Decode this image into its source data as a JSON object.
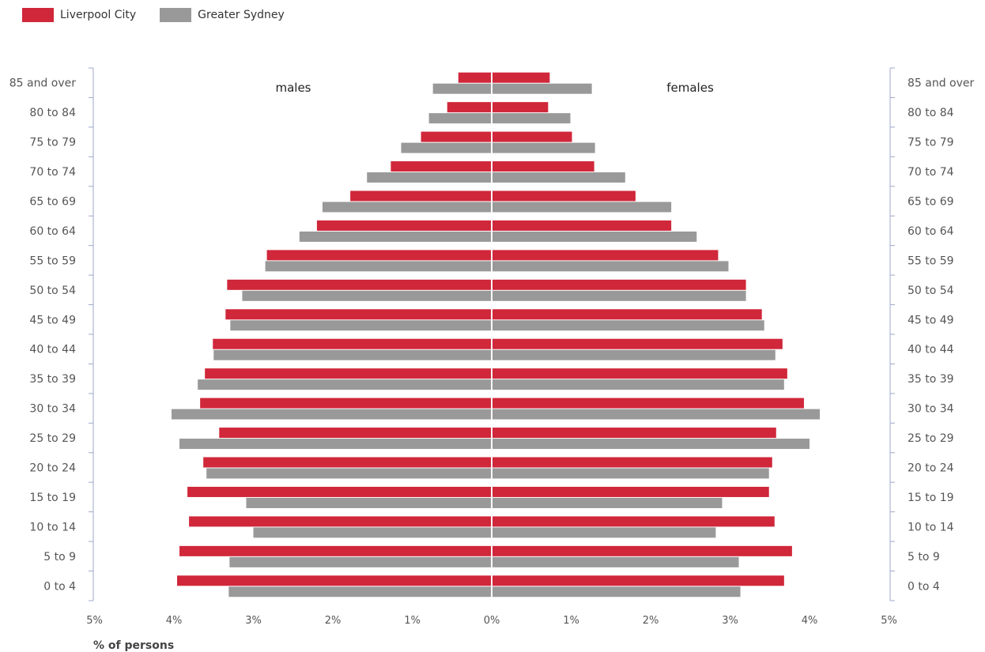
{
  "colors": {
    "series1": "#d0273a",
    "series2": "#999999",
    "axis": "#9fa8c8",
    "text": "#555555"
  },
  "legend": {
    "items": [
      "Liverpool City",
      "Greater Sydney"
    ]
  },
  "chart_data": {
    "type": "bar",
    "orientation": "horizontal-pyramid",
    "categories": [
      "0 to 4",
      "5 to 9",
      "10 to 14",
      "15 to 19",
      "20 to 24",
      "25 to 29",
      "30 to 34",
      "35 to 39",
      "40 to 44",
      "45 to 49",
      "50 to 54",
      "55 to 59",
      "60 to 64",
      "65 to 69",
      "70 to 74",
      "75 to 79",
      "80 to 84",
      "85 and over"
    ],
    "panel_labels": {
      "left": "males",
      "right": "females"
    },
    "xlabel": "% of persons",
    "x_ticks": [
      "5%",
      "4%",
      "3%",
      "2%",
      "1%",
      "0%",
      "1%",
      "2%",
      "3%",
      "4%",
      "5%"
    ],
    "xlim": [
      0,
      5
    ],
    "series": [
      {
        "name": "Liverpool City",
        "males": [
          3.95,
          3.92,
          3.8,
          3.82,
          3.62,
          3.42,
          3.66,
          3.6,
          3.5,
          3.34,
          3.32,
          2.82,
          2.19,
          1.77,
          1.26,
          0.88,
          0.55,
          0.41
        ],
        "females": [
          3.67,
          3.77,
          3.55,
          3.48,
          3.52,
          3.57,
          3.92,
          3.71,
          3.65,
          3.39,
          3.19,
          2.84,
          2.25,
          1.8,
          1.28,
          1.0,
          0.7,
          0.72
        ]
      },
      {
        "name": "Greater Sydney",
        "males": [
          3.3,
          3.29,
          2.99,
          3.08,
          3.58,
          3.92,
          4.02,
          3.69,
          3.49,
          3.28,
          3.13,
          2.84,
          2.41,
          2.12,
          1.56,
          1.13,
          0.78,
          0.73
        ],
        "females": [
          3.12,
          3.1,
          2.81,
          2.89,
          3.48,
          3.99,
          4.12,
          3.67,
          3.56,
          3.42,
          3.19,
          2.97,
          2.57,
          2.25,
          1.67,
          1.29,
          0.98,
          1.25
        ]
      }
    ],
    "legend_position": "top-left",
    "grid": false
  }
}
